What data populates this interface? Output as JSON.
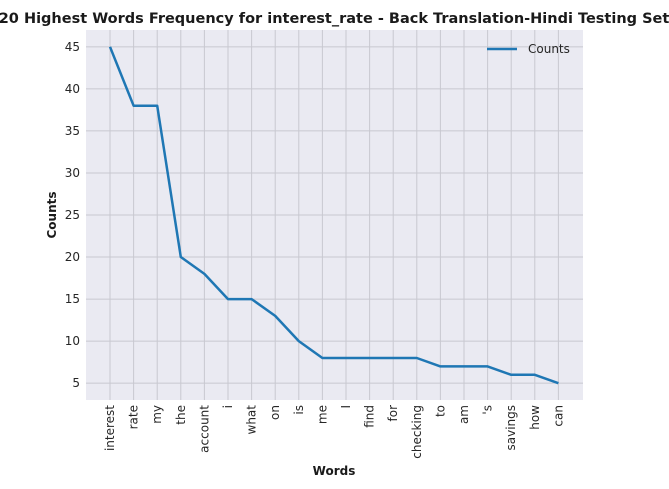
{
  "chart_data": {
    "type": "line",
    "title": "20 Highest Words Frequency for interest_rate - Back Translation-Hindi Testing Set",
    "xlabel": "Words",
    "ylabel": "Counts",
    "categories": [
      "interest",
      "rate",
      "my",
      "the",
      "account",
      "i",
      "what",
      "on",
      "is",
      "me",
      "I",
      "find",
      "for",
      "checking",
      "to",
      "am",
      "'s",
      "savings",
      "how",
      "can"
    ],
    "series": [
      {
        "name": "Counts",
        "color": "#1f77b4",
        "values": [
          45,
          38,
          38,
          20,
          18,
          15,
          15,
          13,
          10,
          8,
          8,
          8,
          8,
          8,
          7,
          7,
          7,
          6,
          6,
          5
        ]
      }
    ],
    "yticks": [
      5,
      10,
      15,
      20,
      25,
      30,
      35,
      40,
      45
    ],
    "ylim": [
      3,
      47
    ],
    "grid": true,
    "legend_position": "top-right",
    "background": "#eaeaf2"
  }
}
